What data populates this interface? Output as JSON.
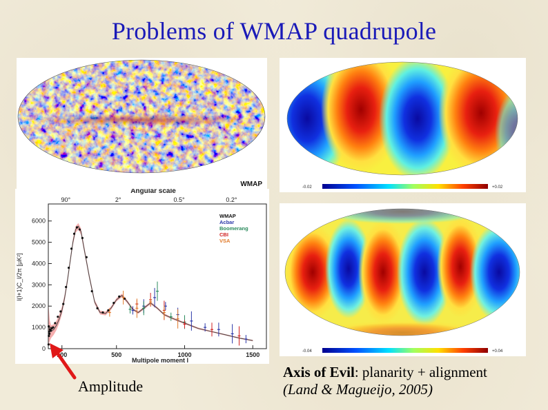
{
  "slide": {
    "title": "Problems of WMAP quadrupole",
    "left_caption": "Amplitude",
    "right_caption": {
      "term": "Axis of Evil",
      "rest": ": planarity + alignment",
      "citation": "(Land & Magueijo, 2005)"
    }
  },
  "wmap_map": {
    "label": "WMAP"
  },
  "quadrupole_map": {
    "scale_min": "-0.02",
    "scale_max": "+0.02"
  },
  "octopole_map": {
    "scale_min": "-0.04",
    "scale_max": "+0.04"
  },
  "colors": {
    "title": "#1a1ab8",
    "arrow": "#e01818",
    "model_band": "#f3a0a0",
    "data_dots": "#111111"
  },
  "chart_data": {
    "type": "scatter",
    "title": "",
    "top_axis_label": "Angular scale",
    "top_ticks": [
      "90°",
      "2°",
      "0.5°",
      "0.2°"
    ],
    "xlabel": "Multipole moment l",
    "ylabel": "l(l+1)C_l/2π [μK²]",
    "xlim": [
      0,
      1600
    ],
    "ylim": [
      0,
      6800
    ],
    "x_ticks": [
      100,
      500,
      1000,
      1500
    ],
    "y_ticks": [
      0,
      1000,
      2000,
      3000,
      4000,
      5000,
      6000
    ],
    "legend": [
      "WMAP",
      "Acbar",
      "Boomerang",
      "CBI",
      "VSA"
    ],
    "legend_colors": [
      "#111111",
      "#2a36a8",
      "#2a8a5c",
      "#d02020",
      "#e07a2a"
    ],
    "model_curve": {
      "x": [
        2,
        10,
        20,
        40,
        60,
        80,
        100,
        120,
        140,
        160,
        180,
        200,
        220,
        240,
        260,
        300,
        340,
        380,
        420,
        460,
        500,
        540,
        580,
        620,
        660,
        700,
        750,
        800,
        850,
        900,
        1000,
        1100,
        1200,
        1300,
        1400,
        1500
      ],
      "y": [
        1100,
        850,
        800,
        900,
        1100,
        1400,
        1800,
        2400,
        3200,
        4100,
        5000,
        5600,
        5750,
        5500,
        4800,
        3400,
        2200,
        1700,
        1650,
        1900,
        2300,
        2500,
        2200,
        1850,
        1700,
        1900,
        2150,
        1900,
        1600,
        1450,
        1200,
        950,
        800,
        650,
        500,
        380
      ],
      "band_halfwidth": [
        900,
        500,
        300,
        250,
        220,
        200,
        180,
        160,
        150,
        150,
        150,
        150,
        150,
        150,
        140,
        120,
        100,
        90,
        90,
        80,
        80,
        80,
        70,
        60,
        60,
        60,
        60,
        50,
        50,
        50,
        40,
        40,
        30,
        30,
        30,
        30
      ]
    },
    "series": [
      {
        "name": "WMAP",
        "x": [
          2,
          3,
          4,
          6,
          8,
          12,
          18,
          25,
          35,
          50,
          70,
          90,
          110,
          130,
          150,
          170,
          190,
          210,
          230,
          250,
          280,
          320,
          360,
          400,
          440,
          480,
          520,
          560
        ],
        "y": [
          200,
          1050,
          600,
          800,
          700,
          900,
          850,
          950,
          1000,
          1200,
          1500,
          1750,
          2100,
          2900,
          3800,
          4700,
          5400,
          5700,
          5600,
          5200,
          4300,
          2700,
          1900,
          1700,
          1800,
          2150,
          2450,
          2350
        ]
      },
      {
        "name": "Acbar",
        "x": [
          620,
          700,
          780,
          860,
          950,
          1050,
          1150,
          1250,
          1350,
          1450
        ],
        "y": [
          1800,
          2000,
          2400,
          2000,
          1600,
          1300,
          1000,
          900,
          700,
          450
        ]
      },
      {
        "name": "Boomerang",
        "x": [
          600,
          700,
          800,
          900,
          1000
        ],
        "y": [
          1850,
          1900,
          2700,
          1500,
          1250
        ]
      },
      {
        "name": "CBI",
        "x": [
          650,
          750,
          850,
          1000,
          1200,
          1400
        ],
        "y": [
          2100,
          2300,
          1800,
          1150,
          900,
          600
        ]
      },
      {
        "name": "VSA",
        "x": [
          450,
          550,
          650,
          750,
          850,
          950
        ],
        "y": [
          1700,
          2400,
          1900,
          2200,
          1700,
          1400
        ]
      }
    ]
  }
}
